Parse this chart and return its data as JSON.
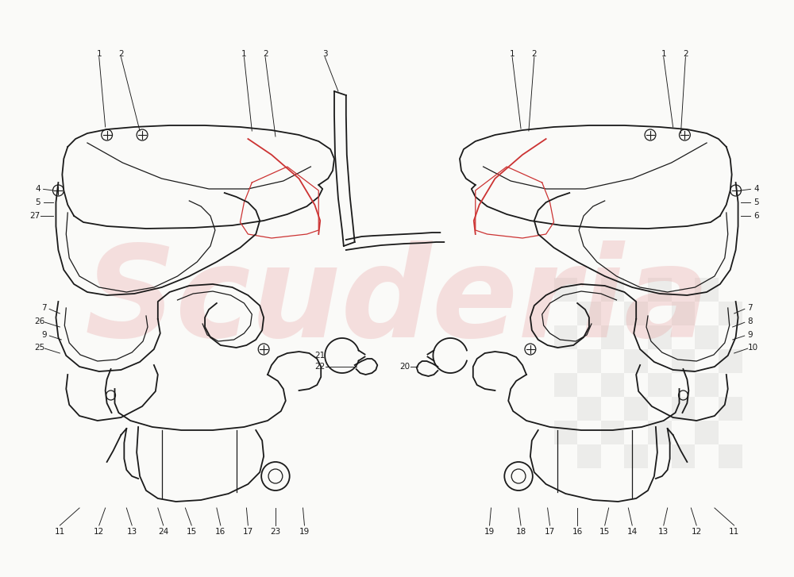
{
  "bg_color": "#FAFAF8",
  "line_color": "#1a1a1a",
  "red_color": "#cc3333",
  "watermark_color": "#e8a0a0",
  "watermark_text": "Scuderia",
  "label_fontsize": 7.5,
  "figsize": [
    10.0,
    7.27
  ],
  "dpi": 100
}
